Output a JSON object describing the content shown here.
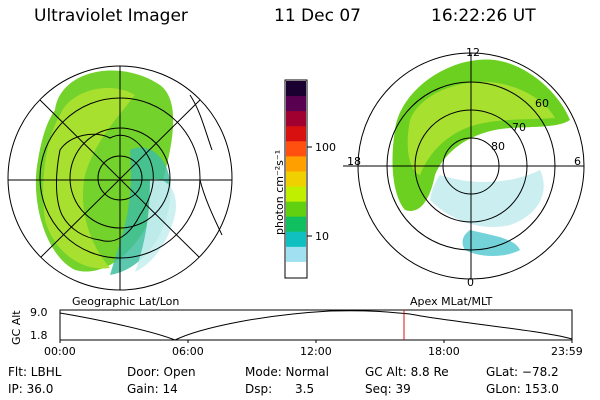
{
  "header": {
    "instrument": "Ultraviolet Imager",
    "date": "11 Dec 07",
    "time": "16:22:26 UT"
  },
  "left_map": {
    "caption": "Geographic Lat/Lon"
  },
  "right_map": {
    "caption": "Apex MLat/MLT",
    "mlt_labels": {
      "top": "12",
      "left": "18",
      "right": "6",
      "bottom": "0"
    },
    "mlat_labels": [
      "60",
      "70",
      "80"
    ]
  },
  "colorbar": {
    "unit_label": "photon cm⁻²s⁻¹",
    "scale": "log",
    "ticks": [
      "100",
      "10"
    ],
    "colors": [
      "#1a0030",
      "#5a0050",
      "#a00030",
      "#d81010",
      "#ff5010",
      "#ffa000",
      "#f0d000",
      "#c0f000",
      "#60d010",
      "#10c060",
      "#10c0c0",
      "#a0e0f0",
      "#ffffff"
    ]
  },
  "altitude_plot": {
    "ylabel": "GC Alt",
    "yticks": [
      "9.0",
      "1.8"
    ],
    "xticks": [
      "00:00",
      "06:00",
      "12:00",
      "18:00",
      "23:59"
    ],
    "marker_time": "16:22:26"
  },
  "footer": {
    "rows": [
      [
        "Flt: LBHL",
        "Door: Open",
        "Mode: Normal",
        "GC Alt: 8.8 Re",
        "GLat: −78.2"
      ],
      [
        "IP: 36.0",
        "Gain: 14",
        "Dsp:      3.5",
        "Seq: 39",
        "GLon: 153.0"
      ]
    ]
  }
}
